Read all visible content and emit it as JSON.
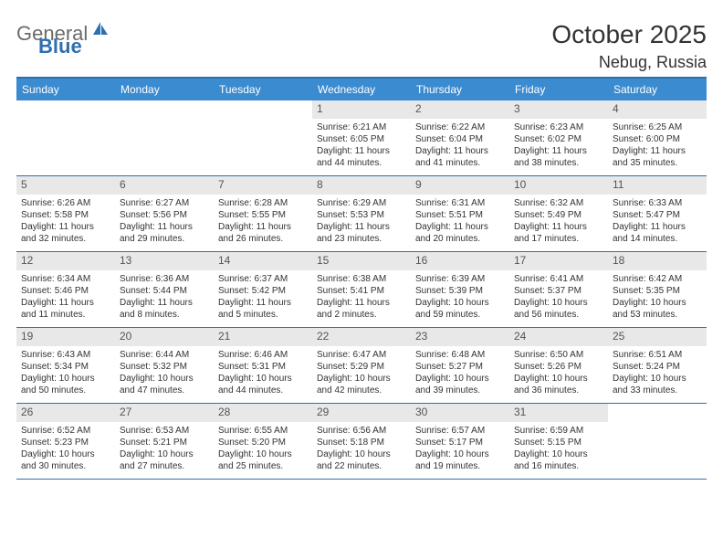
{
  "logo": {
    "text1": "General",
    "text2": "Blue"
  },
  "title": "October 2025",
  "location": "Nebug, Russia",
  "colors": {
    "header_bg": "#3b8bd0",
    "border": "#2f6fb0",
    "daynum_bg": "#e8e8e8",
    "text": "#333333"
  },
  "day_headers": [
    "Sunday",
    "Monday",
    "Tuesday",
    "Wednesday",
    "Thursday",
    "Friday",
    "Saturday"
  ],
  "weeks": [
    [
      {
        "n": "",
        "sr": "",
        "ss": "",
        "dl": ""
      },
      {
        "n": "",
        "sr": "",
        "ss": "",
        "dl": ""
      },
      {
        "n": "",
        "sr": "",
        "ss": "",
        "dl": ""
      },
      {
        "n": "1",
        "sr": "Sunrise: 6:21 AM",
        "ss": "Sunset: 6:05 PM",
        "dl": "Daylight: 11 hours and 44 minutes."
      },
      {
        "n": "2",
        "sr": "Sunrise: 6:22 AM",
        "ss": "Sunset: 6:04 PM",
        "dl": "Daylight: 11 hours and 41 minutes."
      },
      {
        "n": "3",
        "sr": "Sunrise: 6:23 AM",
        "ss": "Sunset: 6:02 PM",
        "dl": "Daylight: 11 hours and 38 minutes."
      },
      {
        "n": "4",
        "sr": "Sunrise: 6:25 AM",
        "ss": "Sunset: 6:00 PM",
        "dl": "Daylight: 11 hours and 35 minutes."
      }
    ],
    [
      {
        "n": "5",
        "sr": "Sunrise: 6:26 AM",
        "ss": "Sunset: 5:58 PM",
        "dl": "Daylight: 11 hours and 32 minutes."
      },
      {
        "n": "6",
        "sr": "Sunrise: 6:27 AM",
        "ss": "Sunset: 5:56 PM",
        "dl": "Daylight: 11 hours and 29 minutes."
      },
      {
        "n": "7",
        "sr": "Sunrise: 6:28 AM",
        "ss": "Sunset: 5:55 PM",
        "dl": "Daylight: 11 hours and 26 minutes."
      },
      {
        "n": "8",
        "sr": "Sunrise: 6:29 AM",
        "ss": "Sunset: 5:53 PM",
        "dl": "Daylight: 11 hours and 23 minutes."
      },
      {
        "n": "9",
        "sr": "Sunrise: 6:31 AM",
        "ss": "Sunset: 5:51 PM",
        "dl": "Daylight: 11 hours and 20 minutes."
      },
      {
        "n": "10",
        "sr": "Sunrise: 6:32 AM",
        "ss": "Sunset: 5:49 PM",
        "dl": "Daylight: 11 hours and 17 minutes."
      },
      {
        "n": "11",
        "sr": "Sunrise: 6:33 AM",
        "ss": "Sunset: 5:47 PM",
        "dl": "Daylight: 11 hours and 14 minutes."
      }
    ],
    [
      {
        "n": "12",
        "sr": "Sunrise: 6:34 AM",
        "ss": "Sunset: 5:46 PM",
        "dl": "Daylight: 11 hours and 11 minutes."
      },
      {
        "n": "13",
        "sr": "Sunrise: 6:36 AM",
        "ss": "Sunset: 5:44 PM",
        "dl": "Daylight: 11 hours and 8 minutes."
      },
      {
        "n": "14",
        "sr": "Sunrise: 6:37 AM",
        "ss": "Sunset: 5:42 PM",
        "dl": "Daylight: 11 hours and 5 minutes."
      },
      {
        "n": "15",
        "sr": "Sunrise: 6:38 AM",
        "ss": "Sunset: 5:41 PM",
        "dl": "Daylight: 11 hours and 2 minutes."
      },
      {
        "n": "16",
        "sr": "Sunrise: 6:39 AM",
        "ss": "Sunset: 5:39 PM",
        "dl": "Daylight: 10 hours and 59 minutes."
      },
      {
        "n": "17",
        "sr": "Sunrise: 6:41 AM",
        "ss": "Sunset: 5:37 PM",
        "dl": "Daylight: 10 hours and 56 minutes."
      },
      {
        "n": "18",
        "sr": "Sunrise: 6:42 AM",
        "ss": "Sunset: 5:35 PM",
        "dl": "Daylight: 10 hours and 53 minutes."
      }
    ],
    [
      {
        "n": "19",
        "sr": "Sunrise: 6:43 AM",
        "ss": "Sunset: 5:34 PM",
        "dl": "Daylight: 10 hours and 50 minutes."
      },
      {
        "n": "20",
        "sr": "Sunrise: 6:44 AM",
        "ss": "Sunset: 5:32 PM",
        "dl": "Daylight: 10 hours and 47 minutes."
      },
      {
        "n": "21",
        "sr": "Sunrise: 6:46 AM",
        "ss": "Sunset: 5:31 PM",
        "dl": "Daylight: 10 hours and 44 minutes."
      },
      {
        "n": "22",
        "sr": "Sunrise: 6:47 AM",
        "ss": "Sunset: 5:29 PM",
        "dl": "Daylight: 10 hours and 42 minutes."
      },
      {
        "n": "23",
        "sr": "Sunrise: 6:48 AM",
        "ss": "Sunset: 5:27 PM",
        "dl": "Daylight: 10 hours and 39 minutes."
      },
      {
        "n": "24",
        "sr": "Sunrise: 6:50 AM",
        "ss": "Sunset: 5:26 PM",
        "dl": "Daylight: 10 hours and 36 minutes."
      },
      {
        "n": "25",
        "sr": "Sunrise: 6:51 AM",
        "ss": "Sunset: 5:24 PM",
        "dl": "Daylight: 10 hours and 33 minutes."
      }
    ],
    [
      {
        "n": "26",
        "sr": "Sunrise: 6:52 AM",
        "ss": "Sunset: 5:23 PM",
        "dl": "Daylight: 10 hours and 30 minutes."
      },
      {
        "n": "27",
        "sr": "Sunrise: 6:53 AM",
        "ss": "Sunset: 5:21 PM",
        "dl": "Daylight: 10 hours and 27 minutes."
      },
      {
        "n": "28",
        "sr": "Sunrise: 6:55 AM",
        "ss": "Sunset: 5:20 PM",
        "dl": "Daylight: 10 hours and 25 minutes."
      },
      {
        "n": "29",
        "sr": "Sunrise: 6:56 AM",
        "ss": "Sunset: 5:18 PM",
        "dl": "Daylight: 10 hours and 22 minutes."
      },
      {
        "n": "30",
        "sr": "Sunrise: 6:57 AM",
        "ss": "Sunset: 5:17 PM",
        "dl": "Daylight: 10 hours and 19 minutes."
      },
      {
        "n": "31",
        "sr": "Sunrise: 6:59 AM",
        "ss": "Sunset: 5:15 PM",
        "dl": "Daylight: 10 hours and 16 minutes."
      },
      {
        "n": "",
        "sr": "",
        "ss": "",
        "dl": ""
      }
    ]
  ]
}
